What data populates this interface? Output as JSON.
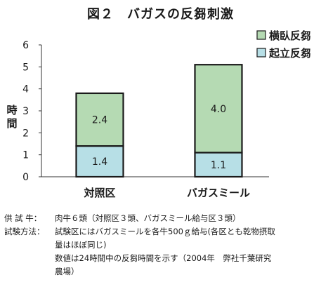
{
  "chart_data": {
    "type": "bar",
    "stacked": true,
    "title": "図２　バガスの反芻刺激",
    "ylabel": "時間",
    "ylim": [
      0,
      6
    ],
    "yticks": [
      "0",
      "1",
      "2",
      "3",
      "4",
      "5",
      "6"
    ],
    "categories": [
      "対照区",
      "バガスミール"
    ],
    "series": [
      {
        "name": "起立反芻",
        "values": [
          1.4,
          1.1
        ],
        "labels": [
          "1.4",
          "1.1"
        ],
        "color": "#b7dfe6"
      },
      {
        "name": "横臥反芻",
        "values": [
          2.4,
          4.0
        ],
        "labels": [
          "2.4",
          "4.0"
        ],
        "color": "#b5dab3"
      }
    ],
    "legend": "top-right",
    "grid": false
  },
  "notes": {
    "supply_label": "供 試 牛：",
    "supply_text": "肉牛６頭（対照区３頭、バガスミール給与区３頭）",
    "method_label": "試験方法：",
    "method_lines": [
      "試験区にはバガスミールを各牛500ｇ給与(各区とも乾物摂取",
      "量はほぼ同じ)",
      "数値は24時間中の反芻時間を示す（2004年　弊社千葉研究",
      "農場）"
    ]
  }
}
